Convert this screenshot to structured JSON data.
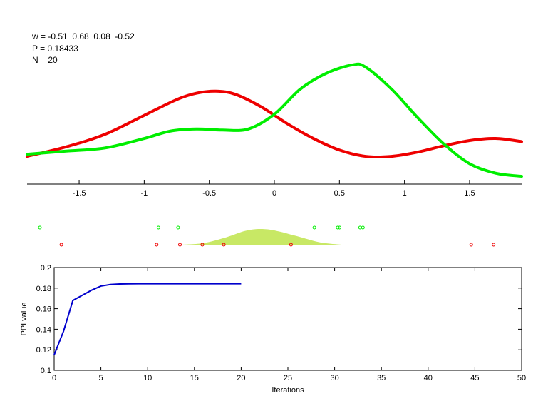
{
  "info": {
    "w_line": "w = -0.51  0.68  0.08  -0.52",
    "p_line": "P = 0.18433",
    "n_line": "N = 20"
  },
  "colors": {
    "class_red": "#ee0000",
    "class_green": "#00ee00",
    "bump_fill": "#c8e865",
    "convergence_line": "#0000cc"
  },
  "chart_data": [
    {
      "type": "line",
      "xlim": [
        -1.9,
        1.9
      ],
      "x_ticks": [
        -1.5,
        -1,
        -0.5,
        0,
        0.5,
        1,
        1.5
      ],
      "x_tick_labels": [
        "-1.5",
        "-1",
        "-0.5",
        "0",
        "0.5",
        "1",
        "1.5"
      ],
      "y_axis_visible": false,
      "series": [
        {
          "color": "red",
          "x": [
            -1.9,
            -1.6,
            -1.3,
            -1.0,
            -0.75,
            -0.6,
            -0.45,
            -0.3,
            -0.1,
            0.1,
            0.3,
            0.5,
            0.7,
            0.9,
            1.1,
            1.3,
            1.5,
            1.7,
            1.9
          ],
          "y": [
            0.21,
            0.3,
            0.42,
            0.6,
            0.75,
            0.81,
            0.83,
            0.8,
            0.68,
            0.52,
            0.38,
            0.27,
            0.21,
            0.21,
            0.25,
            0.31,
            0.36,
            0.38,
            0.35
          ]
        },
        {
          "color": "green",
          "x": [
            -1.9,
            -1.6,
            -1.3,
            -1.0,
            -0.8,
            -0.6,
            -0.4,
            -0.2,
            0.0,
            0.2,
            0.4,
            0.6,
            0.7,
            0.9,
            1.1,
            1.3,
            1.5,
            1.7,
            1.9
          ],
          "y": [
            0.23,
            0.26,
            0.29,
            0.38,
            0.45,
            0.47,
            0.46,
            0.47,
            0.61,
            0.85,
            1.0,
            1.08,
            1.06,
            0.85,
            0.58,
            0.33,
            0.14,
            0.05,
            0.02
          ]
        }
      ]
    },
    {
      "type": "scatter",
      "xlim": [
        0,
        50
      ],
      "rows": [
        {
          "color": "green",
          "x": [
            0.0,
            12.7,
            14.8,
            29.4,
            31.9,
            32.1,
            34.3,
            34.6
          ]
        },
        {
          "color": "red",
          "x": [
            2.3,
            12.5,
            15.0,
            17.4,
            19.7,
            26.9,
            46.2,
            48.6
          ]
        }
      ],
      "area": {
        "x": [
          15.3,
          17.5,
          20.0,
          22.0,
          23.6,
          25.2,
          27.5,
          30.0,
          32.4
        ],
        "y": [
          0,
          0.1,
          0.48,
          0.88,
          1.0,
          0.9,
          0.55,
          0.15,
          0
        ]
      }
    },
    {
      "type": "line",
      "xlabel": "Iterations",
      "ylabel": "PPI value",
      "xlim": [
        0,
        50
      ],
      "ylim": [
        0.1,
        0.2
      ],
      "x_ticks": [
        0,
        5,
        10,
        15,
        20,
        25,
        30,
        35,
        40,
        45,
        50
      ],
      "y_ticks": [
        0.1,
        0.12,
        0.14,
        0.16,
        0.18,
        0.2
      ],
      "x_tick_labels": [
        "0",
        "5",
        "10",
        "15",
        "20",
        "25",
        "30",
        "35",
        "40",
        "45",
        "50"
      ],
      "y_tick_labels": [
        "0.1",
        "0.12",
        "0.14",
        "0.16",
        "0.18",
        "0.2"
      ],
      "series": [
        {
          "color": "blue",
          "x": [
            0,
            1,
            2,
            3,
            4,
            5,
            6,
            7,
            8,
            9,
            10,
            12,
            14,
            16,
            18,
            20
          ],
          "y": [
            0.115,
            0.138,
            0.168,
            0.173,
            0.178,
            0.182,
            0.1835,
            0.184,
            0.1842,
            0.1843,
            0.1843,
            0.1843,
            0.1843,
            0.1843,
            0.1843,
            0.1843
          ]
        }
      ]
    }
  ]
}
